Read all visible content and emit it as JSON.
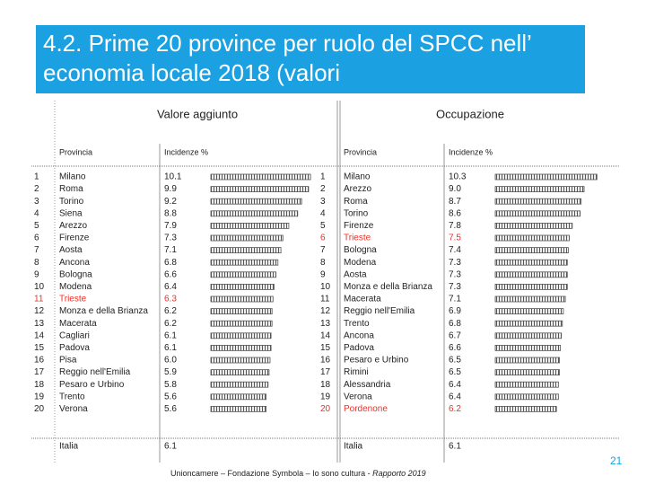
{
  "header": {
    "title": "4.2. Prime 20 province per ruolo del SPCC nell’ economia locale 2018 (valori"
  },
  "table": {
    "highlight_color": "#e8312a",
    "bar_color": "#555555",
    "sections": [
      {
        "title": "Valore aggiunto",
        "columns": [
          "Provincia",
          "Incidenze %"
        ],
        "rows": [
          {
            "rank": 1,
            "province": "Milano",
            "value": "10.1"
          },
          {
            "rank": 2,
            "province": "Roma",
            "value": "9.9"
          },
          {
            "rank": 3,
            "province": "Torino",
            "value": "9.2"
          },
          {
            "rank": 4,
            "province": "Siena",
            "value": "8.8"
          },
          {
            "rank": 5,
            "province": "Arezzo",
            "value": "7.9"
          },
          {
            "rank": 6,
            "province": "Firenze",
            "value": "7.3"
          },
          {
            "rank": 7,
            "province": "Aosta",
            "value": "7.1"
          },
          {
            "rank": 8,
            "province": "Ancona",
            "value": "6.8"
          },
          {
            "rank": 9,
            "province": "Bologna",
            "value": "6.6"
          },
          {
            "rank": 10,
            "province": "Modena",
            "value": "6.4"
          },
          {
            "rank": 11,
            "province": "Trieste",
            "value": "6.3",
            "highlight": true
          },
          {
            "rank": 12,
            "province": "Monza e della Brianza",
            "value": "6.2"
          },
          {
            "rank": 13,
            "province": "Macerata",
            "value": "6.2"
          },
          {
            "rank": 14,
            "province": "Cagliari",
            "value": "6.1"
          },
          {
            "rank": 15,
            "province": "Padova",
            "value": "6.1"
          },
          {
            "rank": 16,
            "province": "Pisa",
            "value": "6.0"
          },
          {
            "rank": 17,
            "province": "Reggio nell'Emilia",
            "value": "5.9"
          },
          {
            "rank": 18,
            "province": "Pesaro e Urbino",
            "value": "5.8"
          },
          {
            "rank": 19,
            "province": "Trento",
            "value": "5.6"
          },
          {
            "rank": 20,
            "province": "Verona",
            "value": "5.6"
          }
        ],
        "total": {
          "province": "Italia",
          "value": "6.1"
        }
      },
      {
        "title": "Occupazione",
        "columns": [
          "Provincia",
          "Incidenze %"
        ],
        "rows": [
          {
            "rank": 1,
            "province": "Milano",
            "value": "10.3"
          },
          {
            "rank": 2,
            "province": "Arezzo",
            "value": "9.0"
          },
          {
            "rank": 3,
            "province": "Roma",
            "value": "8.7"
          },
          {
            "rank": 4,
            "province": "Torino",
            "value": "8.6"
          },
          {
            "rank": 5,
            "province": "Firenze",
            "value": "7.8"
          },
          {
            "rank": 6,
            "province": "Trieste",
            "value": "7.5",
            "highlight": true
          },
          {
            "rank": 7,
            "province": "Bologna",
            "value": "7.4"
          },
          {
            "rank": 8,
            "province": "Modena",
            "value": "7.3"
          },
          {
            "rank": 9,
            "province": "Aosta",
            "value": "7.3"
          },
          {
            "rank": 10,
            "province": "Monza e della Brianza",
            "value": "7.3"
          },
          {
            "rank": 11,
            "province": "Macerata",
            "value": "7.1"
          },
          {
            "rank": 12,
            "province": "Reggio nell'Emilia",
            "value": "6.9"
          },
          {
            "rank": 13,
            "province": "Trento",
            "value": "6.8"
          },
          {
            "rank": 14,
            "province": "Ancona",
            "value": "6.7"
          },
          {
            "rank": 15,
            "province": "Padova",
            "value": "6.6"
          },
          {
            "rank": 16,
            "province": "Pesaro e Urbino",
            "value": "6.5"
          },
          {
            "rank": 17,
            "province": "Rimini",
            "value": "6.5"
          },
          {
            "rank": 18,
            "province": "Alessandria",
            "value": "6.4"
          },
          {
            "rank": 19,
            "province": "Verona",
            "value": "6.4"
          },
          {
            "rank": 20,
            "province": "Pordenone",
            "value": "6.2",
            "highlight": true
          }
        ],
        "total": {
          "province": "Italia",
          "value": "6.1"
        }
      }
    ]
  },
  "footer": {
    "source": "Unioncamere – Fondazione Symbola – Io sono cultura - ",
    "source_italic": "Rapporto 2019",
    "page": "21"
  }
}
